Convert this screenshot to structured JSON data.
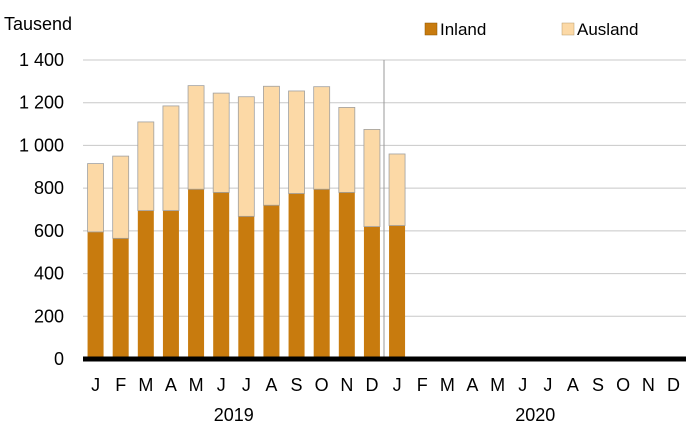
{
  "chart_data": {
    "type": "bar",
    "stacked": true,
    "ylabel": "Tausend",
    "ylim": [
      0,
      1400
    ],
    "yticks": [
      0,
      200,
      400,
      600,
      800,
      1000,
      1200,
      1400
    ],
    "ytick_labels": [
      "0",
      "200",
      "400",
      "600",
      "800",
      "1 000",
      "1 200",
      "1 400"
    ],
    "grid": true,
    "legend_position": "top-right",
    "categories": [
      "J",
      "F",
      "M",
      "A",
      "M",
      "J",
      "J",
      "A",
      "S",
      "O",
      "N",
      "D",
      "J",
      "F",
      "M",
      "A",
      "M",
      "J",
      "J",
      "A",
      "S",
      "O",
      "N",
      "D"
    ],
    "years": [
      {
        "label": "2019",
        "start": 0,
        "count": 12
      },
      {
        "label": "2020",
        "start": 12,
        "count": 12
      }
    ],
    "series": [
      {
        "name": "Inland",
        "color": "#c87b0e",
        "values": [
          595,
          565,
          695,
          695,
          795,
          780,
          668,
          720,
          775,
          795,
          780,
          620,
          625,
          null,
          null,
          null,
          null,
          null,
          null,
          null,
          null,
          null,
          null,
          null
        ]
      },
      {
        "name": "Ausland",
        "color": "#fcd9a6",
        "values": [
          320,
          385,
          415,
          490,
          485,
          465,
          560,
          557,
          480,
          480,
          398,
          455,
          335,
          null,
          null,
          null,
          null,
          null,
          null,
          null,
          null,
          null,
          null,
          null
        ]
      }
    ]
  }
}
